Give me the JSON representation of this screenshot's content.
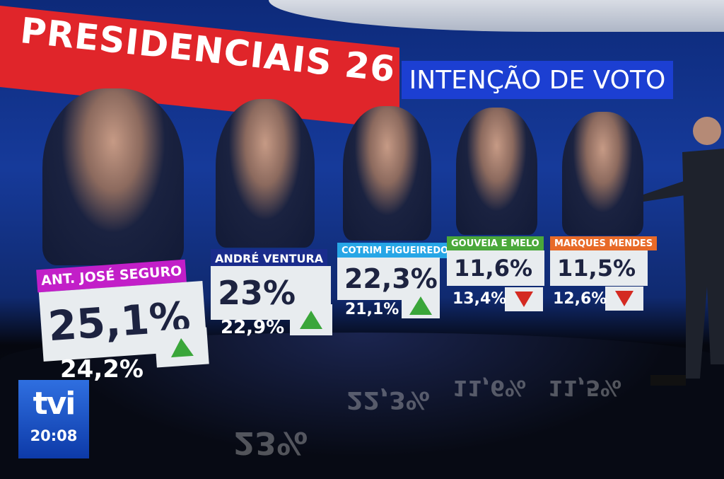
{
  "header": {
    "title": "PRESIDENCIAIS 26",
    "subtitle": "INTENÇÃO DE VOTO"
  },
  "colors": {
    "banner": "#e0252a",
    "subtitle_bg": "#1c3fd2",
    "up": "#3aa63a",
    "down": "#d42a22"
  },
  "candidates": [
    {
      "name": "ANT. JOSÉ SEGURO",
      "current": "25,1%",
      "previous": "24,2%",
      "trend": "up",
      "color": "#c21fc8"
    },
    {
      "name": "ANDRÉ VENTURA",
      "current": "23%",
      "previous": "22,9%",
      "trend": "up",
      "color": "#1a2c8c"
    },
    {
      "name": "COTRIM FIGUEIREDO",
      "current": "22,3%",
      "previous": "21,1%",
      "trend": "up",
      "color": "#27a6e6"
    },
    {
      "name": "GOUVEIA E MELO",
      "current": "11,6%",
      "previous": "13,4%",
      "trend": "down",
      "color": "#4aa83a"
    },
    {
      "name": "MARQUES MENDES",
      "current": "11,5%",
      "previous": "12,6%",
      "trend": "down",
      "color": "#e86a28"
    }
  ],
  "channel": {
    "logo": "tvi",
    "time": "20:08"
  }
}
